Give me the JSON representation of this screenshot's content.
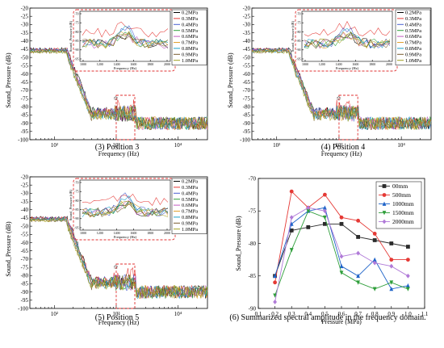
{
  "chart_data": [
    {
      "id": "p3",
      "type": "line",
      "caption": "(3) Position 3",
      "xlabel": "Frequency (Hz)",
      "ylabel": "Sound_Pressure (dB)",
      "xscale": "log",
      "xlim": [
        40,
        30000
      ],
      "ylim": [
        -100,
        -20
      ],
      "yticks": [
        -20,
        -25,
        -30,
        -35,
        -40,
        -45,
        -50,
        -55,
        -60,
        -65,
        -70,
        -75,
        -80,
        -85,
        -90,
        -95,
        -100
      ],
      "xtick_labels": [
        "10²",
        "10³",
        "10⁴"
      ],
      "legend_entries": [
        "0.2MPa",
        "0.3MPa",
        "0.4MPa",
        "0.5MPa",
        "0.6MPa",
        "0.7MPa",
        "0.8MPa",
        "0.9MPa",
        "1.0MPa"
      ],
      "inset": {
        "xlabel": "Frequency (Hz)",
        "ylabel": "Sound_Pressure (dB)",
        "xticks": [
          "1000",
          "1200",
          "1400",
          "1600",
          "1800",
          "2000"
        ],
        "yticks": [
          "-70",
          "-75",
          "-80",
          "-85",
          "-90",
          "-95"
        ]
      },
      "highlight_symbol": "✩"
    },
    {
      "id": "p4",
      "type": "line",
      "caption": "(4) Position 4",
      "xlabel": "Frequency (Hz)",
      "ylabel": "Sound_Pressure (dB)",
      "xscale": "log",
      "xlim": [
        40,
        30000
      ],
      "ylim": [
        -100,
        -20
      ],
      "yticks": [
        -20,
        -25,
        -30,
        -35,
        -40,
        -45,
        -50,
        -55,
        -60,
        -65,
        -70,
        -75,
        -80,
        -85,
        -90,
        -95,
        -100
      ],
      "xtick_labels": [
        "10²",
        "10³",
        "10⁴"
      ],
      "legend_entries": [
        "0.2MPa",
        "0.3MPa",
        "0.4MPa",
        "0.5MPa",
        "0.6MPa",
        "0.7MPa",
        "0.8MPa",
        "0.9MPa",
        "1.0MPa"
      ],
      "inset": {
        "xlabel": "Frequency (Hz)",
        "ylabel": "Sound_Pressure (dB)",
        "xticks": [
          "1000",
          "1200",
          "1400",
          "1600",
          "1800",
          "2000"
        ],
        "yticks": [
          "-70",
          "-75",
          "-80",
          "-85",
          "-90",
          "-95"
        ]
      },
      "highlight_symbol": "✩"
    },
    {
      "id": "p5",
      "type": "line",
      "caption": "(5) Position 5",
      "xlabel": "Frequency (Hz)",
      "ylabel": "Sound_Pressure (dB)",
      "xscale": "log",
      "xlim": [
        40,
        30000
      ],
      "ylim": [
        -100,
        -20
      ],
      "yticks": [
        -20,
        -25,
        -30,
        -35,
        -40,
        -45,
        -50,
        -55,
        -60,
        -65,
        -70,
        -75,
        -80,
        -85,
        -90,
        -95,
        -100
      ],
      "xtick_labels": [
        "10²",
        "10³",
        "10⁴"
      ],
      "legend_entries": [
        "0.2MPa",
        "0.3MPa",
        "0.4MPa",
        "0.5MPa",
        "0.6MPa",
        "0.7MPa",
        "0.8MPa",
        "0.9MPa",
        "1.0MPa"
      ],
      "inset": {
        "xlabel": "Frequency (Hz)",
        "ylabel": "Sound_Pressure (dB)",
        "xticks": [
          "1000",
          "1200",
          "1400",
          "1600",
          "1800",
          "2000"
        ],
        "yticks": [
          "-70",
          "-75",
          "-80",
          "-85",
          "-90",
          "-95"
        ]
      },
      "highlight_symbol": "✩"
    },
    {
      "id": "p6",
      "type": "line",
      "caption": "(6) Summarized spectral amplitude in the frequency domain.",
      "xlabel": "Pressure (MPa)",
      "ylabel": "Sound_Pressure (dB)",
      "xlim": [
        0.1,
        1.1
      ],
      "ylim": [
        -90,
        -70
      ],
      "xticks": [
        0.1,
        0.2,
        0.3,
        0.4,
        0.5,
        0.6,
        0.7,
        0.8,
        0.9,
        1.0,
        1.1
      ],
      "yticks": [
        -70,
        -75,
        -80,
        -85,
        -90
      ],
      "x": [
        0.2,
        0.3,
        0.4,
        0.5,
        0.6,
        0.7,
        0.8,
        0.9,
        1.0
      ],
      "series": [
        {
          "name": "00mm",
          "values": [
            -85.0,
            -78.0,
            -77.5,
            -77.0,
            -77.0,
            -79.0,
            -79.5,
            -80.0,
            -80.5
          ]
        },
        {
          "name": "500mm",
          "values": [
            -86.0,
            -72.0,
            -74.5,
            -72.5,
            -76.0,
            -76.5,
            -78.5,
            -82.5,
            -82.5
          ]
        },
        {
          "name": "1000mm",
          "values": [
            -85.0,
            -77.0,
            -75.0,
            -74.5,
            -83.5,
            -85.0,
            -82.5,
            -87.0,
            -86.5
          ]
        },
        {
          "name": "1500mm",
          "values": [
            -88.0,
            -81.0,
            -75.0,
            -76.0,
            -84.5,
            -86.0,
            -87.0,
            -86.0,
            -87.0
          ]
        },
        {
          "name": "2000mm",
          "values": [
            -89.0,
            -76.0,
            -74.5,
            -75.0,
            -82.0,
            -81.5,
            -83.0,
            -83.5,
            -85.0
          ]
        }
      ],
      "colors": [
        "#2b2b2b",
        "#e53935",
        "#1e63c8",
        "#2e9e3a",
        "#b07ad8"
      ],
      "markers": [
        "square",
        "circle",
        "triangle-up",
        "triangle-down",
        "diamond"
      ],
      "legend_position": "top-right"
    }
  ],
  "spectrum_colors": [
    "#000000",
    "#e53935",
    "#4a5fd0",
    "#2e9e3a",
    "#c35ac0",
    "#e0a030",
    "#1aa0c8",
    "#7a5c2e",
    "#a0a020"
  ]
}
